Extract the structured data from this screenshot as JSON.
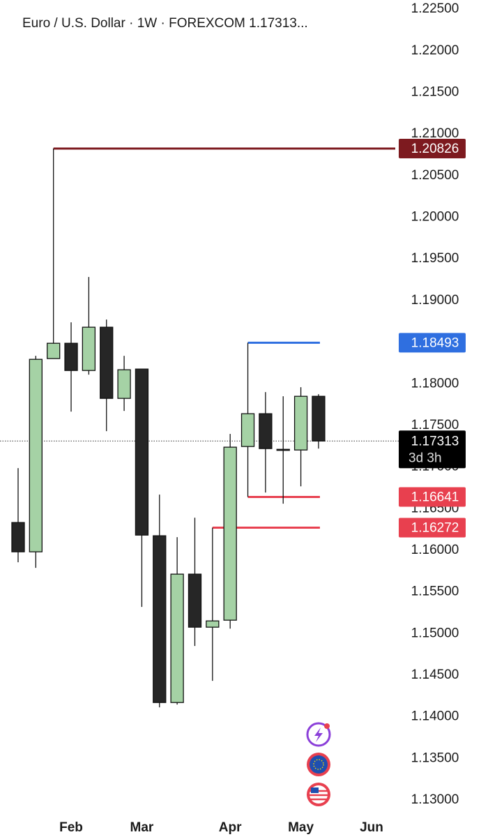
{
  "chart_data": {
    "type": "candlestick",
    "title": "Euro / U.S. Dollar · 1W · FOREXCOM  1.17313...",
    "categories": [
      null,
      null,
      null,
      "Feb",
      null,
      null,
      null,
      "Mar",
      null,
      null,
      null,
      null,
      "Apr",
      null,
      null,
      null,
      "May",
      null,
      null,
      null,
      "Jun"
    ],
    "open": [
      1.16334,
      1.15982,
      1.18303,
      1.18487,
      1.1816,
      1.1868,
      1.17825,
      1.18177,
      1.16175,
      1.14172,
      1.15714,
      1.15077,
      1.15161,
      1.17247,
      1.17641,
      1.17213,
      1.17205,
      1.1785,
      null,
      null,
      null
    ],
    "high": [
      1.16987,
      1.18336,
      1.20826,
      1.18738,
      1.19283,
      1.18772,
      1.18336,
      1.18177,
      1.16669,
      1.16158,
      1.16392,
      1.16272,
      1.17398,
      1.18493,
      1.17901,
      1.1785,
      1.17959,
      1.17875,
      null,
      null,
      null
    ],
    "low": [
      1.15856,
      1.15789,
      1.18303,
      1.17666,
      1.1811,
      1.17431,
      1.17674,
      1.1532,
      1.14114,
      1.14147,
      1.14851,
      1.14432,
      1.1506,
      1.16641,
      1.16694,
      1.1656,
      1.16769,
      1.17222,
      null,
      null,
      null
    ],
    "close": [
      1.15982,
      1.18294,
      1.18487,
      1.1816,
      1.1868,
      1.17825,
      1.18169,
      1.16183,
      1.14172,
      1.15714,
      1.15077,
      1.15152,
      1.17239,
      1.17641,
      1.17222,
      1.17205,
      1.1785,
      1.17313,
      null,
      null,
      null
    ],
    "up_color": "#a5d2a5",
    "down_color": "#262626",
    "ylim": [
      1.12808,
      1.2261
    ],
    "yticks": [
      {
        "value": 1.225,
        "label": "1.22500"
      },
      {
        "value": 1.22,
        "label": "1.22000"
      },
      {
        "value": 1.215,
        "label": "1.21500"
      },
      {
        "value": 1.21,
        "label": "1.21000"
      },
      {
        "value": 1.205,
        "label": "1.20500"
      },
      {
        "value": 1.2,
        "label": "1.20000"
      },
      {
        "value": 1.195,
        "label": "1.19500"
      },
      {
        "value": 1.19,
        "label": "1.19000"
      },
      {
        "value": 1.185,
        "label": "1.18500"
      },
      {
        "value": 1.18,
        "label": "1.18000"
      },
      {
        "value": 1.175,
        "label": "1.17500"
      },
      {
        "value": 1.17,
        "label": "1.17000"
      },
      {
        "value": 1.165,
        "label": "1.16500"
      },
      {
        "value": 1.16,
        "label": "1.16000"
      },
      {
        "value": 1.155,
        "label": "1.15500"
      },
      {
        "value": 1.15,
        "label": "1.15000"
      },
      {
        "value": 1.145,
        "label": "1.14500"
      },
      {
        "value": 1.14,
        "label": "1.14000"
      },
      {
        "value": 1.135,
        "label": "1.13500"
      },
      {
        "value": 1.13,
        "label": "1.13000"
      }
    ],
    "levels": [
      {
        "value": 1.20826,
        "color": "#7d1a1f"
      },
      {
        "value": 1.18493,
        "color": "#2f6fe0"
      },
      {
        "value": 1.16641,
        "color": "#e8404f"
      },
      {
        "value": 1.16272,
        "color": "#e8404f"
      }
    ],
    "last_price": {
      "value": 1.17313,
      "countdown": "3d 3h"
    }
  }
}
